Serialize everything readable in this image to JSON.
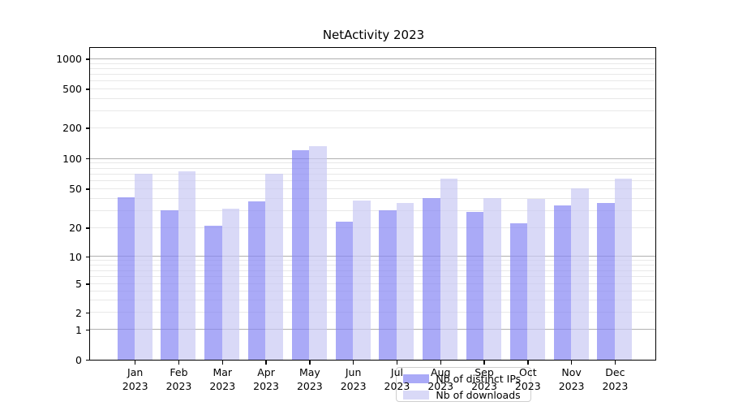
{
  "chart_data": {
    "type": "bar",
    "title": "NetActivity 2023",
    "categories": [
      "Jan",
      "Feb",
      "Mar",
      "Apr",
      "May",
      "Jun",
      "Jul",
      "Aug",
      "Sep",
      "Oct",
      "Nov",
      "Dec"
    ],
    "category_year": "2023",
    "series": [
      {
        "name": "Nb of distinct IPs",
        "color": "#8686f4",
        "values": [
          41,
          30,
          21,
          37,
          120,
          23,
          30,
          40,
          29,
          22,
          34,
          36
        ]
      },
      {
        "name": "Nb of downloads",
        "color": "#c9c9f4",
        "values": [
          70,
          75,
          31,
          71,
          133,
          38,
          36,
          63,
          40,
          39,
          50,
          63
        ]
      }
    ],
    "bar_alpha": 0.7,
    "y_ticks": [
      0,
      1,
      2,
      5,
      10,
      20,
      50,
      100,
      200,
      500,
      1000
    ],
    "y_scale": "log-like above 1 with compressed linear region near 0 (asinh-style)",
    "ylim": [
      0,
      1280
    ],
    "xlabel": "",
    "ylabel": "",
    "grid": "horizontal major (powers of 10, darker) + minor (2-9 per decade, faint)",
    "legend_position": "inside lower-center",
    "major_grid_color": "#b0b0b0",
    "minor_grid_color": "#e8e8e8"
  }
}
